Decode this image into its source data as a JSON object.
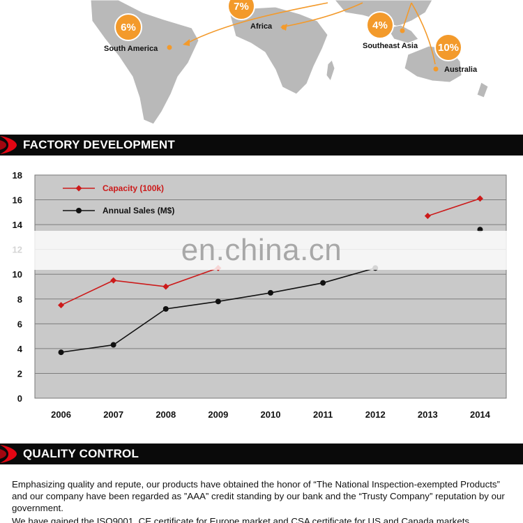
{
  "map": {
    "regions": [
      {
        "name": "South America",
        "percent": "6%"
      },
      {
        "name": "Africa",
        "percent": "7%"
      },
      {
        "name": "Southeast Asia",
        "percent": "4%"
      },
      {
        "name": "Australia",
        "percent": "10%"
      }
    ],
    "route_color": "#f39a2b",
    "land_color": "#b9b9b9"
  },
  "sections": {
    "factory_title": "FACTORY DEVELOPMENT",
    "quality_title": "QUALITY CONTROL",
    "accent_color": "#e30613"
  },
  "watermark": "en.china.cn",
  "chart_data": {
    "type": "line",
    "categories": [
      "2006",
      "2007",
      "2008",
      "2009",
      "2010",
      "2011",
      "2012",
      "2013",
      "2014"
    ],
    "series": [
      {
        "name": "Capacity (100k)",
        "color": "#cc1a1a",
        "marker": "diamond",
        "values": [
          7.5,
          9.5,
          9.0,
          10.5,
          null,
          null,
          null,
          14.7,
          16.1
        ]
      },
      {
        "name": "Annual Sales (M$)",
        "color": "#111111",
        "marker": "circle",
        "values": [
          3.7,
          4.3,
          7.2,
          7.8,
          8.5,
          9.3,
          10.5,
          null,
          13.6
        ]
      }
    ],
    "ylim": [
      0,
      18
    ],
    "yticks": [
      "0",
      "2",
      "4",
      "6",
      "8",
      "10",
      "12",
      "14",
      "16",
      "18"
    ],
    "grid": true,
    "legend_position": "top-left",
    "xlabel": "",
    "ylabel": ""
  },
  "quality": {
    "paragraphs": [
      "Emphasizing quality and repute, our products have obtained the honor of “The National Inspection-exempted Products” and our company have been regarded as ”AAA” credit standing by our bank and the “Trusty Company” reputation by our government.",
      "We have gained the ISO9001, CE certificate for Europe market and CSA certificate for US and Canada markets."
    ]
  }
}
